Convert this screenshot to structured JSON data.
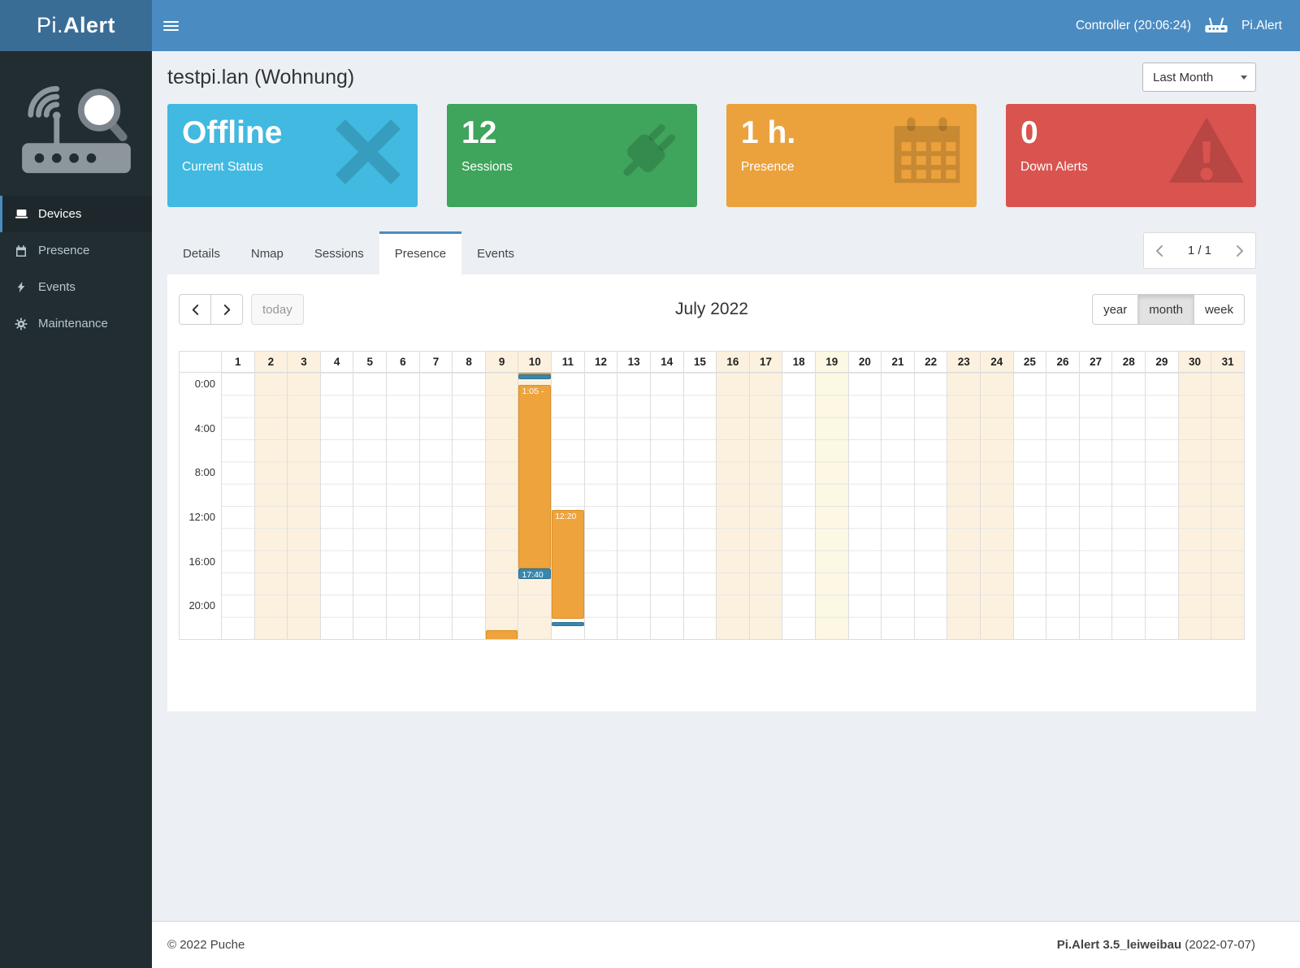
{
  "header": {
    "brand_prefix": "Pi.",
    "brand_suffix": "Alert",
    "controller_label": "Controller (20:06:24)",
    "app_name": "Pi.Alert"
  },
  "sidebar": {
    "items": [
      {
        "label": "Devices",
        "icon": "devices-icon",
        "active": true
      },
      {
        "label": "Presence",
        "icon": "presence-icon",
        "active": false
      },
      {
        "label": "Events",
        "icon": "events-icon",
        "active": false
      },
      {
        "label": "Maintenance",
        "icon": "maintenance-icon",
        "active": false
      }
    ]
  },
  "page": {
    "title": "testpi.lan (Wohnung)",
    "period_selected": "Last Month"
  },
  "stats": [
    {
      "name": "current-status",
      "value": "Offline",
      "label": "Current Status",
      "color": "#41b9e0",
      "icon": "x-icon"
    },
    {
      "name": "sessions",
      "value": "12",
      "label": "Sessions",
      "color": "#3fa45c",
      "icon": "plug-icon"
    },
    {
      "name": "presence",
      "value": "1 h.",
      "label": "Presence",
      "color": "#eba23d",
      "icon": "calendar-icon"
    },
    {
      "name": "down-alerts",
      "value": "0",
      "label": "Down Alerts",
      "color": "#d9534f",
      "icon": "warning-icon"
    }
  ],
  "tabs": [
    {
      "label": "Details",
      "active": false
    },
    {
      "label": "Nmap",
      "active": false
    },
    {
      "label": "Sessions",
      "active": false
    },
    {
      "label": "Presence",
      "active": true
    },
    {
      "label": "Events",
      "active": false
    }
  ],
  "pagination": {
    "page_label": "1 / 1"
  },
  "calendar": {
    "title": "July 2022",
    "today_button": "today",
    "views": [
      {
        "label": "year",
        "active": false
      },
      {
        "label": "month",
        "active": true
      },
      {
        "label": "week",
        "active": false
      }
    ],
    "days": [
      1,
      2,
      3,
      4,
      5,
      6,
      7,
      8,
      9,
      10,
      11,
      12,
      13,
      14,
      15,
      16,
      17,
      18,
      19,
      20,
      21,
      22,
      23,
      24,
      25,
      26,
      27,
      28,
      29,
      30,
      31
    ],
    "weekend_days": [
      2,
      3,
      9,
      10,
      16,
      17,
      23,
      24,
      30,
      31
    ],
    "today_day": 19,
    "time_labels": [
      "0:00",
      "4:00",
      "8:00",
      "12:00",
      "16:00",
      "20:00"
    ],
    "event_colors": {
      "online": "#eea33c",
      "down": "#3a87ad"
    },
    "events": [
      {
        "day": 9,
        "start": 23.2,
        "end": 24.3,
        "type": "online",
        "label": ""
      },
      {
        "day": 10,
        "start": 0,
        "end": 0.15,
        "type": "online",
        "label": ""
      },
      {
        "day": 10,
        "start": 0.15,
        "end": 0.55,
        "type": "down",
        "label": ""
      },
      {
        "day": 10,
        "start": 1.08,
        "end": 17.67,
        "type": "online",
        "label": "1:05 -"
      },
      {
        "day": 10,
        "start": 17.67,
        "end": 18.6,
        "type": "down",
        "label": "17:40"
      },
      {
        "day": 11,
        "start": 12.33,
        "end": 22.2,
        "type": "online",
        "label": "12:20"
      },
      {
        "day": 11,
        "start": 22.45,
        "end": 22.8,
        "type": "down",
        "label": ""
      }
    ]
  },
  "footer": {
    "copyright": "© 2022 Puche",
    "version": "Pi.Alert  3.5_leiweibau",
    "date": "(2022-07-07)"
  }
}
